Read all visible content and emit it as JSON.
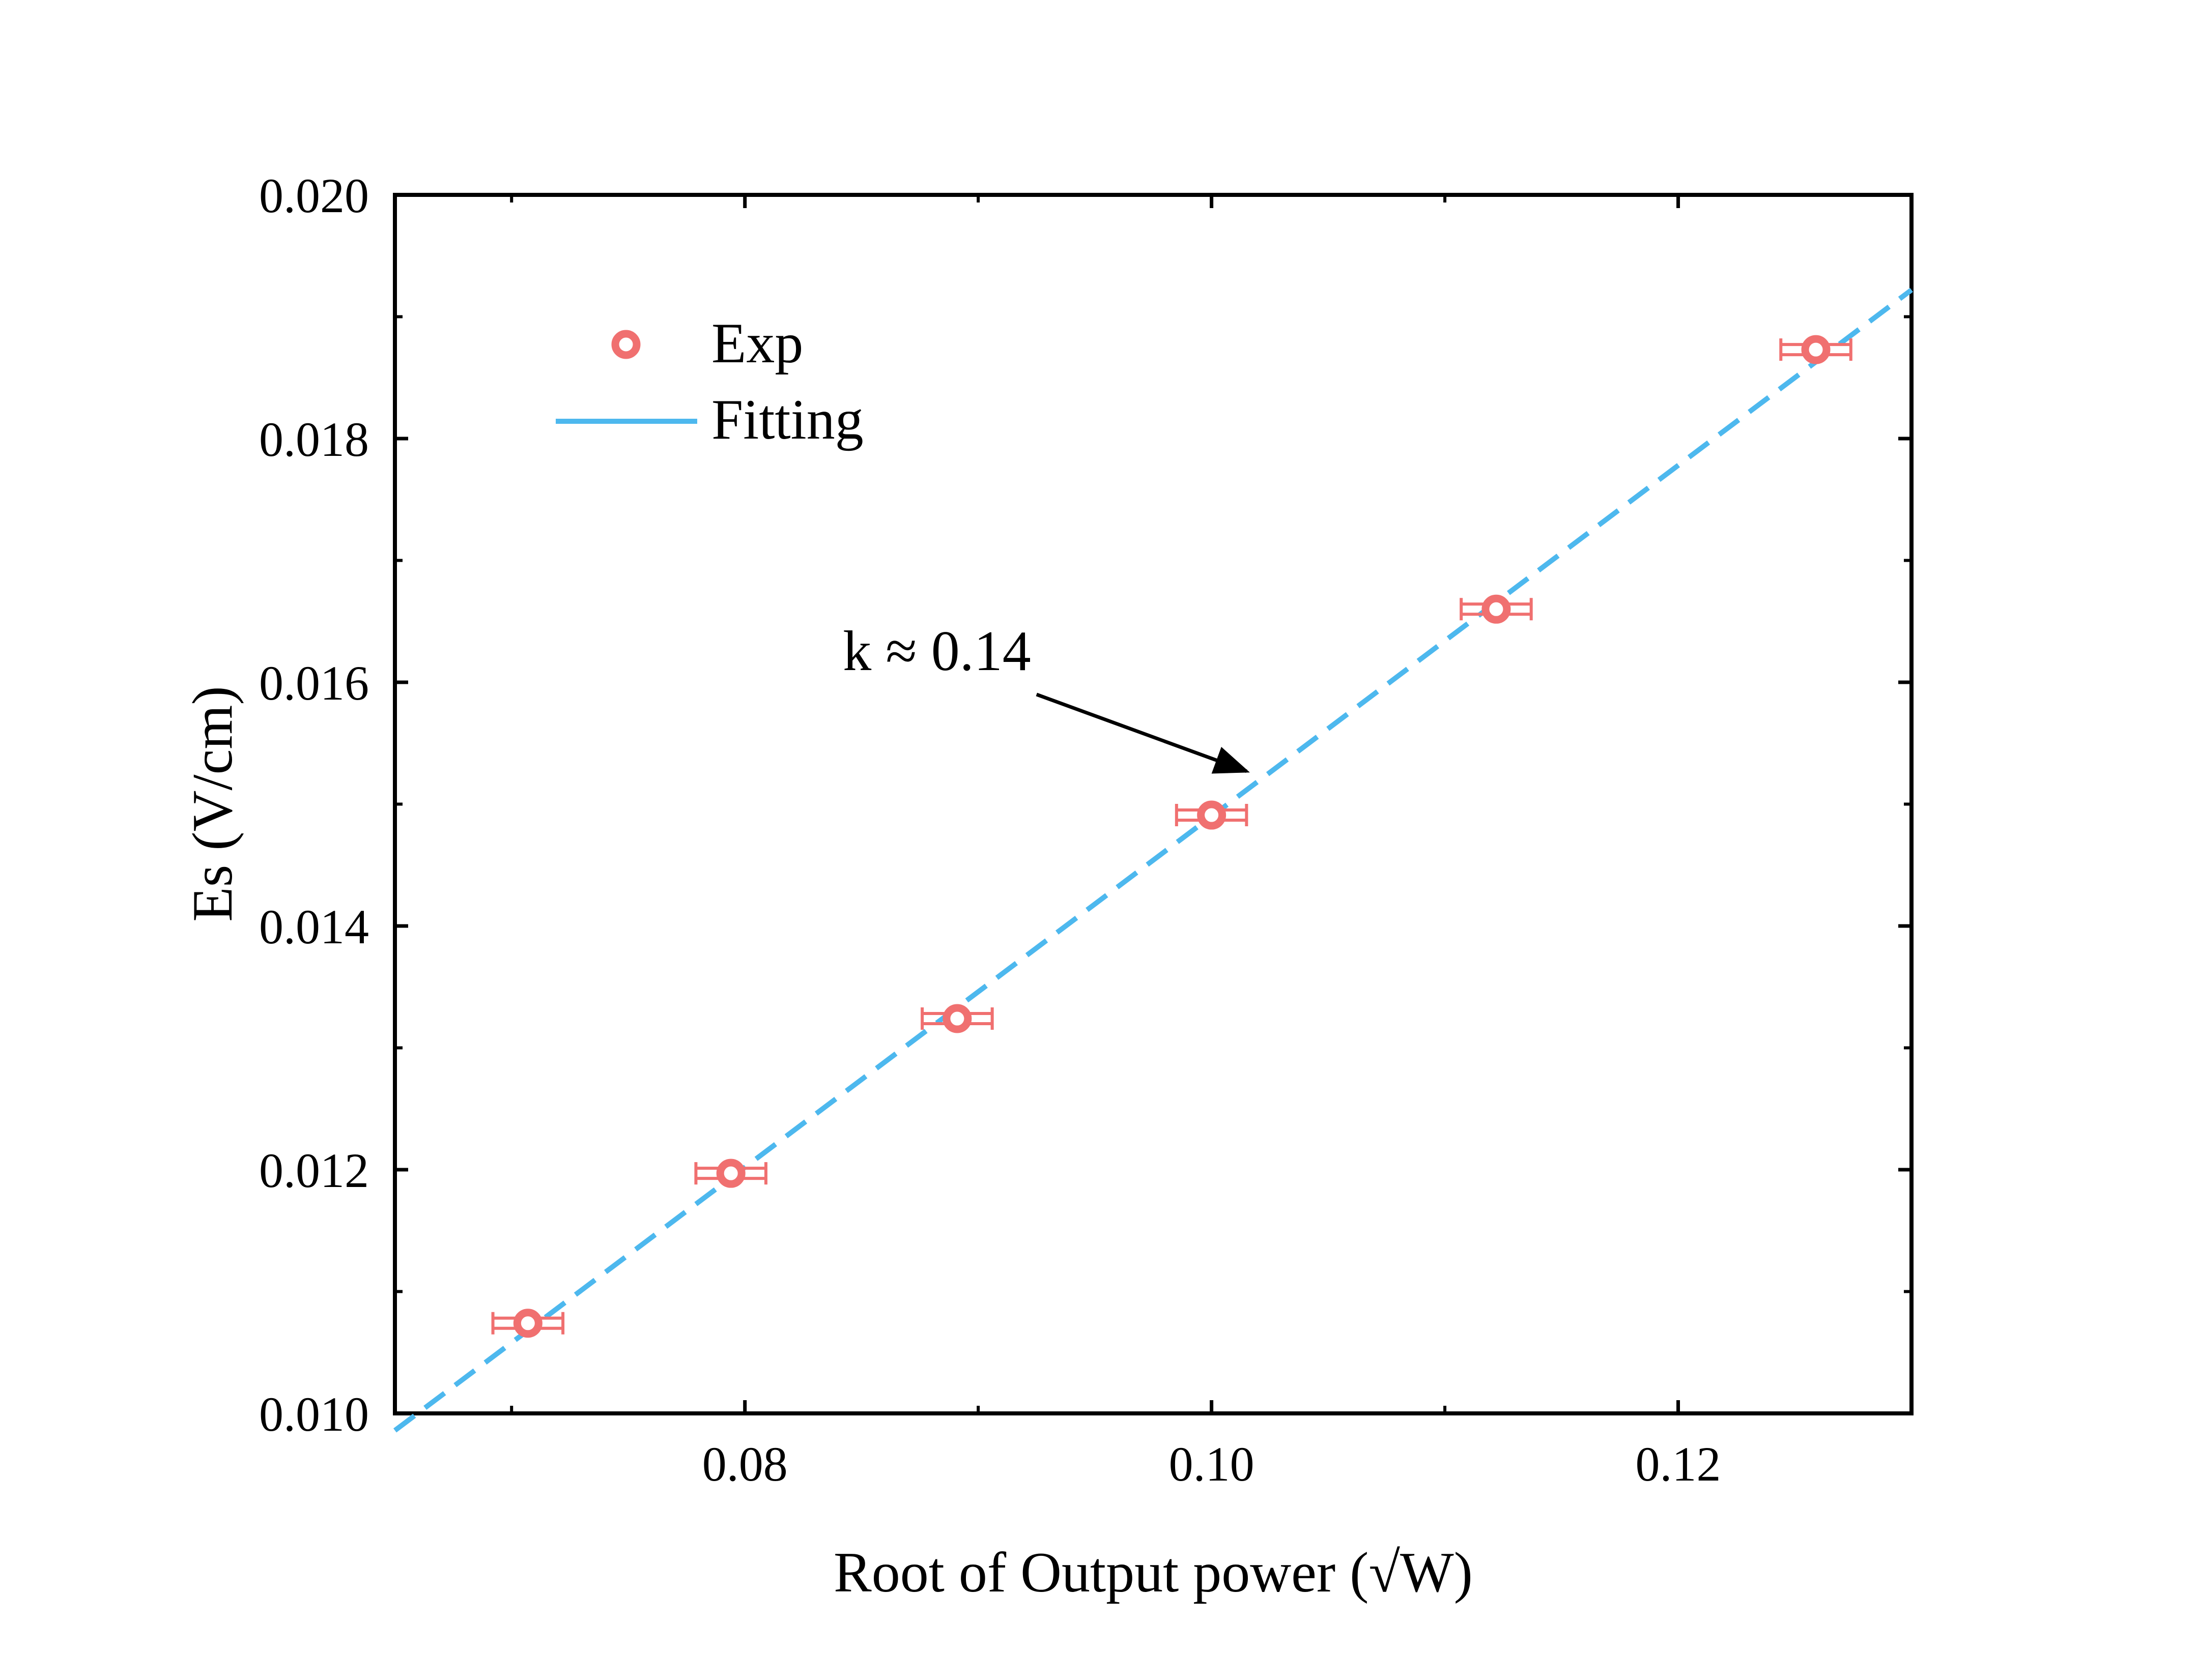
{
  "chart_data": {
    "type": "scatter",
    "title": "",
    "xlabel": "Root of Output power (√W)",
    "ylabel": "Es (V/cm)",
    "xlim": [
      0.065,
      0.13
    ],
    "ylim": [
      0.01,
      0.02
    ],
    "x_ticks": [
      0.08,
      0.1,
      0.12
    ],
    "x_tick_labels": [
      "0.08",
      "0.10",
      "0.12"
    ],
    "x_minor_ticks": [
      0.07,
      0.09,
      0.11
    ],
    "y_ticks": [
      0.01,
      0.012,
      0.014,
      0.016,
      0.018,
      0.02
    ],
    "y_tick_labels": [
      "0.010",
      "0.012",
      "0.014",
      "0.016",
      "0.018",
      "0.020"
    ],
    "y_minor_ticks": [
      0.011,
      0.013,
      0.015,
      0.017,
      0.019
    ],
    "grid": false,
    "legend_position": "top-left",
    "series": [
      {
        "name": "Exp",
        "kind": "scatter",
        "marker": "open-circle",
        "color": "#f07070",
        "x": [
          0.0707,
          0.0794,
          0.0891,
          0.1,
          0.1122,
          0.1259
        ],
        "y": [
          0.01074,
          0.01197,
          0.01324,
          0.01491,
          0.0166,
          0.01873
        ],
        "x_error": [
          0.0015,
          0.0015,
          0.0015,
          0.0015,
          0.0015,
          0.0015
        ]
      },
      {
        "name": "Fitting",
        "kind": "line",
        "style": "dashed",
        "color": "#4db8ee",
        "x": [
          0.065,
          0.13
        ],
        "y": [
          0.00986,
          0.01922
        ]
      }
    ],
    "annotations": [
      {
        "text": "k ≈ 0.14",
        "text_at": [
          0.0842,
          0.0161
        ],
        "arrow_from": [
          0.0925,
          0.0159
        ],
        "arrow_to": [
          0.1015,
          0.01527
        ]
      }
    ]
  }
}
